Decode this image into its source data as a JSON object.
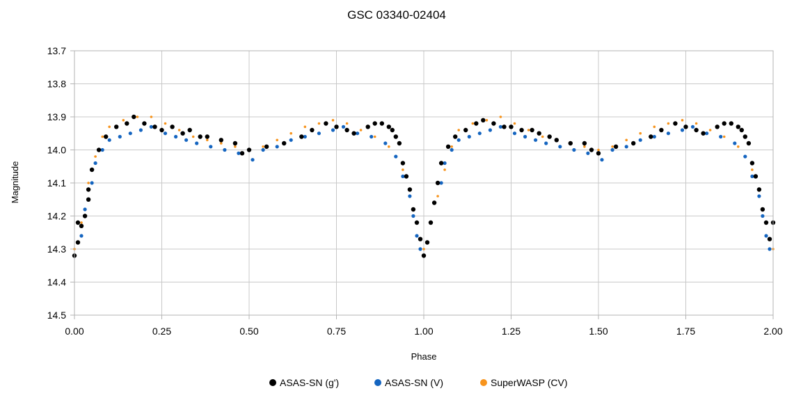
{
  "chart_data": {
    "type": "scatter",
    "title": "GSC 03340-02404",
    "xlabel": "Phase",
    "ylabel": "Magnitude",
    "xlim": [
      0.0,
      2.0
    ],
    "ylim": [
      13.7,
      14.5
    ],
    "y_inverted": true,
    "grid": true,
    "legend_position": "bottom",
    "x_ticks": [
      "0.00",
      "0.25",
      "0.50",
      "0.75",
      "1.00",
      "1.25",
      "1.50",
      "1.75",
      "2.00"
    ],
    "y_ticks": [
      "13.7",
      "13.8",
      "13.9",
      "14.0",
      "14.1",
      "14.2",
      "14.3",
      "14.4",
      "14.5"
    ],
    "series": [
      {
        "name": "ASAS-SN (g')",
        "color": "#000000",
        "x": [
          0.0,
          0.01,
          0.01,
          0.02,
          0.03,
          0.04,
          0.04,
          0.05,
          0.07,
          0.09,
          0.12,
          0.15,
          0.17,
          0.2,
          0.23,
          0.25,
          0.28,
          0.31,
          0.33,
          0.36,
          0.38,
          0.42,
          0.46,
          0.48,
          0.5,
          0.55,
          0.6,
          0.65,
          0.68,
          0.72,
          0.75,
          0.78,
          0.8,
          0.84,
          0.86,
          0.88,
          0.9,
          0.91,
          0.92,
          0.93,
          0.94,
          0.95,
          0.96,
          0.97,
          0.98,
          0.99,
          1.0,
          1.01,
          1.02,
          1.03,
          1.04,
          1.05,
          1.07,
          1.09,
          1.12,
          1.15,
          1.17,
          1.2,
          1.23,
          1.25,
          1.28,
          1.31,
          1.33,
          1.36,
          1.38,
          1.42,
          1.46,
          1.48,
          1.5,
          1.55,
          1.6,
          1.65,
          1.68,
          1.72,
          1.75,
          1.78,
          1.8,
          1.84,
          1.86,
          1.88,
          1.9,
          1.91,
          1.92,
          1.93,
          1.94,
          1.95,
          1.96,
          1.97,
          1.98,
          1.99,
          2.0
        ],
        "y": [
          14.32,
          14.28,
          14.22,
          14.23,
          14.2,
          14.15,
          14.12,
          14.06,
          14.0,
          13.96,
          13.93,
          13.92,
          13.9,
          13.92,
          13.93,
          13.94,
          13.93,
          13.95,
          13.94,
          13.96,
          13.96,
          13.97,
          13.98,
          14.01,
          14.0,
          13.99,
          13.98,
          13.96,
          13.94,
          13.92,
          13.93,
          13.94,
          13.95,
          13.93,
          13.92,
          13.92,
          13.93,
          13.94,
          13.96,
          13.98,
          14.04,
          14.08,
          14.12,
          14.18,
          14.22,
          14.27,
          14.32,
          14.28,
          14.22,
          14.16,
          14.1,
          14.04,
          13.99,
          13.96,
          13.94,
          13.92,
          13.91,
          13.92,
          13.93,
          13.93,
          13.94,
          13.94,
          13.95,
          13.96,
          13.97,
          13.98,
          13.98,
          14.0,
          14.01,
          13.99,
          13.98,
          13.96,
          13.94,
          13.92,
          13.93,
          13.94,
          13.95,
          13.93,
          13.92,
          13.92,
          13.93,
          13.94,
          13.96,
          13.98,
          14.04,
          14.08,
          14.12,
          14.18,
          14.22,
          14.27,
          14.22
        ]
      },
      {
        "name": "ASAS-SN (V)",
        "color": "#1565c0",
        "note": "dense scatter around the same light curve, plotted for phase 0–2",
        "x": [
          0.01,
          0.02,
          0.03,
          0.05,
          0.06,
          0.08,
          0.1,
          0.13,
          0.16,
          0.19,
          0.22,
          0.26,
          0.29,
          0.32,
          0.35,
          0.39,
          0.43,
          0.47,
          0.51,
          0.54,
          0.58,
          0.62,
          0.66,
          0.7,
          0.74,
          0.77,
          0.81,
          0.85,
          0.89,
          0.92,
          0.94,
          0.96,
          0.97,
          0.98,
          0.99,
          1.01,
          1.02,
          1.03,
          1.05,
          1.06,
          1.08,
          1.1,
          1.13,
          1.16,
          1.19,
          1.22,
          1.26,
          1.29,
          1.32,
          1.35,
          1.39,
          1.43,
          1.47,
          1.51,
          1.54,
          1.58,
          1.62,
          1.66,
          1.7,
          1.74,
          1.77,
          1.81,
          1.85,
          1.89,
          1.92,
          1.94,
          1.96,
          1.97,
          1.98,
          1.99
        ],
        "y": [
          14.28,
          14.26,
          14.18,
          14.1,
          14.04,
          14.0,
          13.97,
          13.96,
          13.95,
          13.94,
          13.93,
          13.95,
          13.96,
          13.97,
          13.98,
          13.99,
          14.0,
          14.01,
          14.03,
          14.0,
          13.99,
          13.97,
          13.96,
          13.95,
          13.94,
          13.93,
          13.95,
          13.96,
          13.98,
          14.02,
          14.08,
          14.14,
          14.2,
          14.26,
          14.3,
          14.28,
          14.22,
          14.16,
          14.1,
          14.04,
          14.0,
          13.97,
          13.96,
          13.95,
          13.94,
          13.93,
          13.95,
          13.96,
          13.97,
          13.98,
          13.99,
          14.0,
          14.01,
          14.03,
          14.0,
          13.99,
          13.97,
          13.96,
          13.95,
          13.94,
          13.93,
          13.95,
          13.96,
          13.98,
          14.02,
          14.08,
          14.14,
          14.2,
          14.26,
          14.3
        ]
      },
      {
        "name": "SuperWASP (CV)",
        "color": "#f7941d",
        "note": "very dense scatter with larger spread, same curve shape, phase 0–2",
        "x": [
          0.0,
          0.02,
          0.04,
          0.06,
          0.08,
          0.1,
          0.14,
          0.18,
          0.22,
          0.26,
          0.3,
          0.34,
          0.38,
          0.42,
          0.46,
          0.5,
          0.54,
          0.58,
          0.62,
          0.66,
          0.7,
          0.74,
          0.78,
          0.82,
          0.86,
          0.9,
          0.94,
          0.96,
          0.98,
          1.0,
          1.02,
          1.04,
          1.06,
          1.08,
          1.1,
          1.14,
          1.18,
          1.22,
          1.26,
          1.3,
          1.34,
          1.38,
          1.42,
          1.46,
          1.5,
          1.54,
          1.58,
          1.62,
          1.66,
          1.7,
          1.74,
          1.78,
          1.82,
          1.86,
          1.9,
          1.94,
          1.96,
          1.98,
          2.0
        ],
        "y": [
          14.3,
          14.22,
          14.1,
          14.02,
          13.96,
          13.93,
          13.91,
          13.9,
          13.9,
          13.92,
          13.94,
          13.96,
          13.97,
          13.98,
          13.99,
          14.0,
          13.99,
          13.97,
          13.95,
          13.93,
          13.92,
          13.91,
          13.92,
          13.94,
          13.96,
          13.99,
          14.06,
          14.14,
          14.22,
          14.3,
          14.22,
          14.14,
          14.06,
          13.99,
          13.94,
          13.92,
          13.91,
          13.9,
          13.92,
          13.94,
          13.96,
          13.97,
          13.98,
          13.99,
          14.0,
          13.99,
          13.97,
          13.95,
          13.93,
          13.92,
          13.91,
          13.92,
          13.94,
          13.96,
          13.99,
          14.06,
          14.14,
          14.22,
          14.3
        ]
      }
    ]
  }
}
